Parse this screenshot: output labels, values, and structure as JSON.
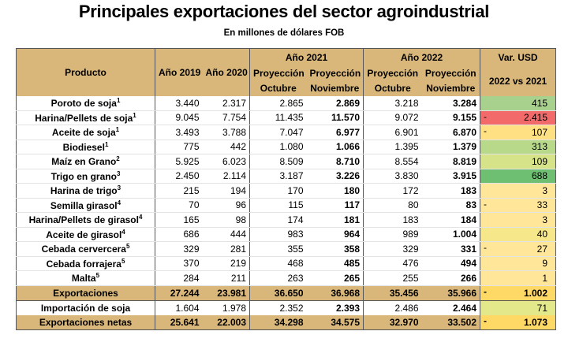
{
  "title": "Principales exportaciones del sector agroindustrial",
  "subtitle": "En millones de dólares FOB",
  "headers": {
    "producto": "Producto",
    "anio2019": "Año 2019",
    "anio2020": "Año 2020",
    "anio2021": "Año 2021",
    "anio2022": "Año 2022",
    "proy_oct_1": "Proyección",
    "proy_oct_2": "Octubre",
    "proy_nov_1": "Proyección",
    "proy_nov_2": "Noviembre",
    "var_1": "Var. USD",
    "var_2": "2022 vs 2021"
  },
  "rows": [
    {
      "producto": "Poroto de soja",
      "sup": "1",
      "y2019": "3.440",
      "y2020": "2.317",
      "o2021": "2.865",
      "n2021": "2.869",
      "o2022": "3.218",
      "n2022": "3.284",
      "sign": "",
      "var": "415",
      "color": "#a9d18e"
    },
    {
      "producto": "Harina/Pellets de soja",
      "sup": "1",
      "y2019": "9.045",
      "y2020": "7.754",
      "o2021": "11.435",
      "n2021": "11.570",
      "o2022": "9.072",
      "n2022": "9.155",
      "sign": "-",
      "var": "2.415",
      "color": "#f26a6a"
    },
    {
      "producto": "Aceite de soja",
      "sup": "1",
      "y2019": "3.493",
      "y2020": "3.788",
      "o2021": "7.047",
      "n2021": "6.977",
      "o2022": "6.901",
      "n2022": "6.870",
      "sign": "-",
      "var": "107",
      "color": "#ffe082"
    },
    {
      "producto": "Biodiesel",
      "sup": "1",
      "y2019": "775",
      "y2020": "442",
      "o2021": "1.080",
      "n2021": "1.066",
      "o2022": "1.395",
      "n2022": "1.379",
      "sign": "",
      "var": "313",
      "color": "#b9d98a"
    },
    {
      "producto": "Maíz en Grano",
      "sup": "2",
      "y2019": "5.925",
      "y2020": "6.023",
      "o2021": "8.509",
      "n2021": "8.710",
      "o2022": "8.554",
      "n2022": "8.819",
      "sign": "",
      "var": "109",
      "color": "#d6e389"
    },
    {
      "producto": "Trigo en grano",
      "sup": "3",
      "y2019": "2.450",
      "y2020": "2.114",
      "o2021": "3.187",
      "n2021": "3.226",
      "o2022": "3.830",
      "n2022": "3.915",
      "sign": "",
      "var": "688",
      "color": "#6fbf73"
    },
    {
      "producto": "Harina de trigo",
      "sup": "3",
      "y2019": "215",
      "y2020": "194",
      "o2021": "170",
      "n2021": "180",
      "o2022": "172",
      "n2022": "183",
      "sign": "",
      "var": "3",
      "color": "#ffe699"
    },
    {
      "producto": "Semilla girasol",
      "sup": "4",
      "y2019": "70",
      "y2020": "96",
      "o2021": "115",
      "n2021": "117",
      "o2022": "80",
      "n2022": "83",
      "sign": "-",
      "var": "33",
      "color": "#ffe699"
    },
    {
      "producto": "Harina/Pellets de girasol",
      "sup": "4",
      "y2019": "165",
      "y2020": "98",
      "o2021": "174",
      "n2021": "181",
      "o2022": "183",
      "n2022": "184",
      "sign": "",
      "var": "3",
      "color": "#ffe699"
    },
    {
      "producto": "Aceite de girasol",
      "sup": "4",
      "y2019": "686",
      "y2020": "444",
      "o2021": "983",
      "n2021": "964",
      "o2022": "989",
      "n2022": "1.004",
      "sign": "",
      "var": "40",
      "color": "#f5e78a"
    },
    {
      "producto": "Cebada cervercera",
      "sup": "5",
      "y2019": "329",
      "y2020": "281",
      "o2021": "355",
      "n2021": "358",
      "o2022": "329",
      "n2022": "331",
      "sign": "-",
      "var": "27",
      "color": "#ffe699"
    },
    {
      "producto": "Cebada forrajera",
      "sup": "5",
      "y2019": "370",
      "y2020": "219",
      "o2021": "468",
      "n2021": "485",
      "o2022": "476",
      "n2022": "494",
      "sign": "",
      "var": "9",
      "color": "#ffe699"
    },
    {
      "producto": "Malta",
      "sup": "5",
      "y2019": "284",
      "y2020": "211",
      "o2021": "263",
      "n2021": "265",
      "o2022": "255",
      "n2022": "266",
      "sign": "",
      "var": "1",
      "color": "#ffe699"
    }
  ],
  "total": {
    "producto": "Exportaciones",
    "y2019": "27.244",
    "y2020": "23.981",
    "o2021": "36.650",
    "n2021": "36.968",
    "o2022": "35.456",
    "n2022": "35.966",
    "sign": "-",
    "var": "1.002"
  },
  "importacion": {
    "producto": "Importación de soja",
    "y2019": "1.604",
    "y2020": "1.978",
    "o2021": "2.352",
    "n2021": "2.393",
    "o2022": "2.486",
    "n2022": "2.464",
    "sign": "",
    "var": "71",
    "color": "#e3e88a"
  },
  "netas": {
    "producto": "Exportaciones netas",
    "y2019": "25.641",
    "y2020": "22.003",
    "o2021": "34.298",
    "n2021": "34.575",
    "o2022": "32.970",
    "n2022": "33.502",
    "sign": "-",
    "var": "1.073"
  }
}
